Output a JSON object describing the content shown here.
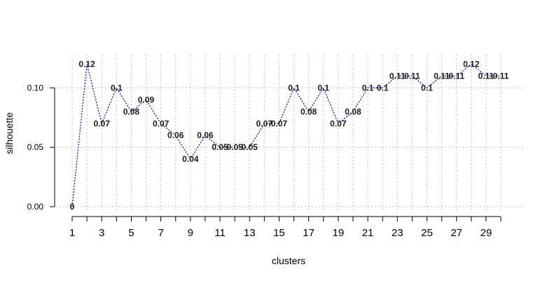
{
  "chart_data": {
    "type": "line",
    "title": "",
    "xlabel": "clusters",
    "ylabel": "silhouette",
    "x": [
      1,
      2,
      3,
      4,
      5,
      6,
      7,
      8,
      9,
      10,
      11,
      12,
      13,
      14,
      15,
      16,
      17,
      18,
      19,
      20,
      21,
      22,
      23,
      24,
      25,
      26,
      27,
      28,
      29,
      30
    ],
    "series": [
      {
        "values": [
          0,
          0.12,
          0.07,
          0.1,
          0.08,
          0.09,
          0.07,
          0.06,
          0.04,
          0.06,
          0.05,
          0.05,
          0.05,
          0.07,
          0.07,
          0.1,
          0.08,
          0.1,
          0.07,
          0.08,
          0.1,
          0.1,
          0.11,
          0.11,
          0.1,
          0.11,
          0.11,
          0.12,
          0.11,
          0.11
        ],
        "labels": [
          "0",
          "0.12",
          "0.07",
          "0.1",
          "0.08",
          "0.09",
          "0.07",
          "0.06",
          "0.04",
          "0.06",
          "0.05",
          "0.05",
          "0.05",
          "0.07",
          "0.07",
          "0.1",
          "0.08",
          "0.1",
          "0.07",
          "0.08",
          "0.1",
          "0.1",
          "0.11",
          "0.11",
          "0.1",
          "0.11",
          "0.11",
          "0.12",
          "0.11",
          "0.11"
        ]
      }
    ],
    "xticks": [
      1,
      3,
      5,
      7,
      9,
      11,
      13,
      15,
      17,
      19,
      21,
      23,
      25,
      27,
      29
    ],
    "yticks": [
      0.0,
      0.05,
      0.1
    ],
    "ytick_labels": [
      "0.00",
      "0.05",
      "0.10"
    ],
    "xlim": [
      1,
      30
    ],
    "ylim": [
      0,
      0.125
    ],
    "grid": true,
    "line_color": "#00008b",
    "line_style": "dotted",
    "grid_color": "#bebebe"
  }
}
